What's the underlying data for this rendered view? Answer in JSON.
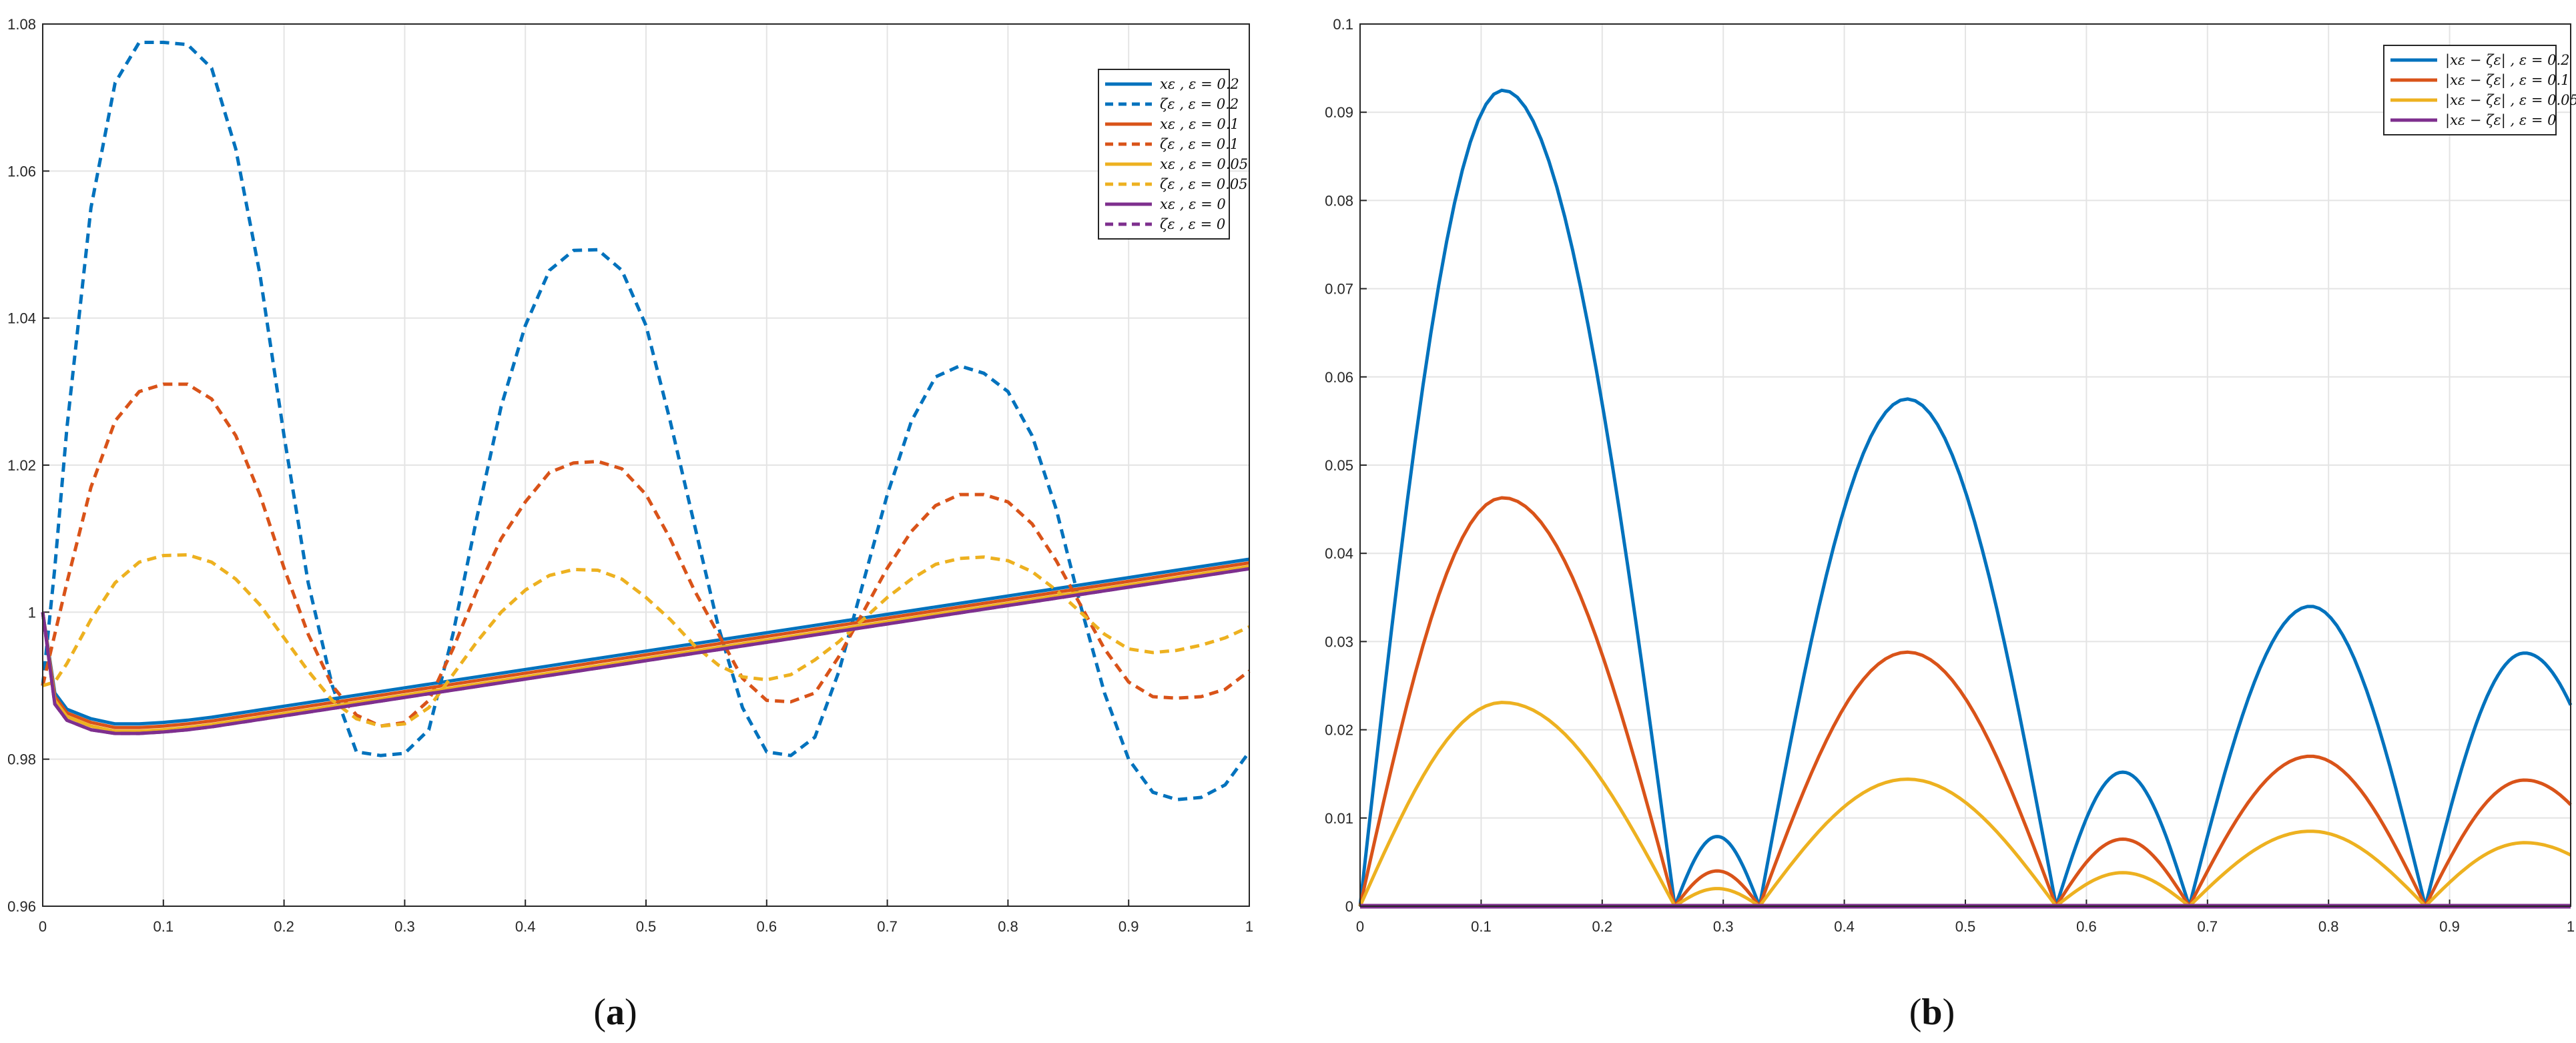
{
  "panels": [
    {
      "caption_open": "(",
      "caption_letter": "a",
      "caption_close": ")"
    },
    {
      "caption_open": "(",
      "caption_letter": "b",
      "caption_close": ")"
    }
  ],
  "chart_data": [
    {
      "type": "line",
      "title": "",
      "xlabel": "",
      "ylabel": "",
      "xlim": [
        0,
        1
      ],
      "ylim": [
        0.96,
        1.08
      ],
      "xticks": [
        0,
        0.1,
        0.2,
        0.3,
        0.4,
        0.5,
        0.6,
        0.7,
        0.8,
        0.9,
        1
      ],
      "xtick_labels": [
        "0",
        "0.1",
        "0.2",
        "0.3",
        "0.4",
        "0.5",
        "0.6",
        "0.7",
        "0.8",
        "0.9",
        "1"
      ],
      "yticks": [
        0.96,
        0.98,
        1.0,
        1.02,
        1.04,
        1.06,
        1.08
      ],
      "ytick_labels": [
        "0.96",
        "0.98",
        "1",
        "1.02",
        "1.04",
        "1.06",
        "1.08"
      ],
      "grid": true,
      "legend_position": "top-right",
      "x": [
        0,
        0.01,
        0.02,
        0.04,
        0.06,
        0.08,
        0.1,
        0.12,
        0.14,
        0.16,
        0.18,
        0.2,
        0.22,
        0.24,
        0.26,
        0.28,
        0.3,
        0.32,
        0.34,
        0.36,
        0.38,
        0.4,
        0.42,
        0.44,
        0.46,
        0.48,
        0.5,
        0.52,
        0.54,
        0.56,
        0.58,
        0.6,
        0.62,
        0.64,
        0.66,
        0.68,
        0.7,
        0.72,
        0.74,
        0.76,
        0.78,
        0.8,
        0.82,
        0.84,
        0.86,
        0.88,
        0.9,
        0.92,
        0.94,
        0.96,
        0.98,
        1.0
      ],
      "series": [
        {
          "name": "x_ε , ε = 0.2",
          "legend_label": "xε , ε = 0.2",
          "color": "#0072BD",
          "dash": "solid",
          "values": [
            1.0,
            0.989,
            0.9868,
            0.9855,
            0.9848,
            0.9848,
            0.985,
            0.9853,
            0.9857,
            0.9862,
            0.9867,
            0.9872,
            0.9877,
            0.9882,
            0.9887,
            0.9892,
            0.9897,
            0.9902,
            0.9907,
            0.9912,
            0.9917,
            0.9922,
            0.9927,
            0.9932,
            0.9937,
            0.9942,
            0.9947,
            0.9952,
            0.9957,
            0.9962,
            0.9967,
            0.9972,
            0.9977,
            0.9982,
            0.9987,
            0.9992,
            0.9997,
            1.0002,
            1.0007,
            1.0012,
            1.0017,
            1.0022,
            1.0027,
            1.0032,
            1.0037,
            1.0042,
            1.0047,
            1.0052,
            1.0057,
            1.0062,
            1.0067,
            1.0072
          ]
        },
        {
          "name": "ζ_ε , ε = 0.2",
          "legend_label": "ζε , ε = 0.2",
          "color": "#0072BD",
          "dash": "dashed",
          "values": [
            0.99,
            1.006,
            1.025,
            1.055,
            1.072,
            1.0775,
            1.0775,
            1.0772,
            1.074,
            1.063,
            1.046,
            1.024,
            1.004,
            0.99,
            0.981,
            0.9805,
            0.9808,
            0.984,
            0.997,
            1.013,
            1.028,
            1.039,
            1.0465,
            1.0492,
            1.0493,
            1.0465,
            1.039,
            1.026,
            1.012,
            0.998,
            0.987,
            0.981,
            0.9805,
            0.983,
            0.992,
            1.004,
            1.016,
            1.026,
            1.032,
            1.0335,
            1.0325,
            1.03,
            1.024,
            1.014,
            1.001,
            0.989,
            0.98,
            0.9755,
            0.9745,
            0.9748,
            0.9765,
            0.981
          ]
        },
        {
          "name": "x_ε , ε = 0.1",
          "legend_label": "xε , ε = 0.1",
          "color": "#D95319",
          "dash": "solid",
          "values": [
            1.0,
            0.9885,
            0.9863,
            0.985,
            0.9843,
            0.9843,
            0.9845,
            0.9848,
            0.9852,
            0.9857,
            0.9862,
            0.9867,
            0.9872,
            0.9877,
            0.9882,
            0.9887,
            0.9892,
            0.9897,
            0.9902,
            0.9907,
            0.9912,
            0.9917,
            0.9922,
            0.9927,
            0.9932,
            0.9937,
            0.9942,
            0.9947,
            0.9952,
            0.9957,
            0.9962,
            0.9967,
            0.9972,
            0.9977,
            0.9982,
            0.9987,
            0.9992,
            0.9997,
            1.0002,
            1.0007,
            1.0012,
            1.0017,
            1.0022,
            1.0027,
            1.0032,
            1.0037,
            1.0042,
            1.0047,
            1.0052,
            1.0057,
            1.0062,
            1.0067
          ]
        },
        {
          "name": "ζ_ε , ε = 0.1",
          "legend_label": "ζε , ε = 0.1",
          "color": "#D95319",
          "dash": "dashed",
          "values": [
            0.99,
            0.997,
            1.004,
            1.017,
            1.026,
            1.03,
            1.031,
            1.031,
            1.029,
            1.024,
            1.016,
            1.006,
            0.997,
            0.99,
            0.986,
            0.9845,
            0.985,
            0.988,
            0.995,
            1.003,
            1.01,
            1.015,
            1.019,
            1.0203,
            1.0205,
            1.0195,
            1.016,
            1.01,
            1.003,
            0.997,
            0.991,
            0.988,
            0.9878,
            0.989,
            0.994,
            1.0,
            1.006,
            1.011,
            1.0145,
            1.016,
            1.016,
            1.015,
            1.012,
            1.007,
            1.001,
            0.995,
            0.9905,
            0.9885,
            0.9883,
            0.9885,
            0.9895,
            0.992
          ]
        },
        {
          "name": "x_ε , ε = 0.05",
          "legend_label": "xε , ε = 0.05",
          "color": "#EDB120",
          "dash": "solid",
          "values": [
            1.0,
            0.988,
            0.9858,
            0.9845,
            0.9838,
            0.9838,
            0.984,
            0.9843,
            0.9847,
            0.9852,
            0.9857,
            0.9862,
            0.9867,
            0.9872,
            0.9877,
            0.9882,
            0.9887,
            0.9892,
            0.9897,
            0.9902,
            0.9907,
            0.9912,
            0.9917,
            0.9922,
            0.9927,
            0.9932,
            0.9937,
            0.9942,
            0.9947,
            0.9952,
            0.9957,
            0.9962,
            0.9967,
            0.9972,
            0.9977,
            0.9982,
            0.9987,
            0.9992,
            0.9997,
            1.0002,
            1.0007,
            1.0012,
            1.0017,
            1.0022,
            1.0027,
            1.0032,
            1.0037,
            1.0042,
            1.0047,
            1.0052,
            1.0057,
            1.0062
          ]
        },
        {
          "name": "ζ_ε , ε = 0.05",
          "legend_label": "ζε , ε = 0.05",
          "color": "#EDB120",
          "dash": "dashed",
          "values": [
            0.99,
            0.9905,
            0.993,
            0.999,
            1.004,
            1.0068,
            1.0077,
            1.0078,
            1.0068,
            1.0045,
            1.001,
            0.9965,
            0.992,
            0.988,
            0.9855,
            0.9845,
            0.9848,
            0.987,
            0.9915,
            0.996,
            1.0,
            1.003,
            1.005,
            1.0058,
            1.0057,
            1.0045,
            1.002,
            0.999,
            0.9955,
            0.9928,
            0.9912,
            0.9908,
            0.9915,
            0.9935,
            0.996,
            0.999,
            1.002,
            1.0045,
            1.0065,
            1.0073,
            1.0075,
            1.007,
            1.0055,
            1.003,
            1.0,
            0.997,
            0.995,
            0.9945,
            0.9948,
            0.9955,
            0.9965,
            0.998
          ]
        },
        {
          "name": "x_ε , ε = 0",
          "legend_label": "xε , ε = 0",
          "color": "#7E2F8E",
          "dash": "solid",
          "values": [
            1.0,
            0.9875,
            0.9853,
            0.984,
            0.9835,
            0.9835,
            0.9837,
            0.984,
            0.9844,
            0.9849,
            0.9854,
            0.9859,
            0.9864,
            0.9869,
            0.9874,
            0.9879,
            0.9884,
            0.9889,
            0.9894,
            0.9899,
            0.9904,
            0.9909,
            0.9914,
            0.9919,
            0.9924,
            0.9929,
            0.9934,
            0.9939,
            0.9944,
            0.9949,
            0.9954,
            0.9959,
            0.9964,
            0.9969,
            0.9974,
            0.9979,
            0.9984,
            0.9989,
            0.9994,
            0.9999,
            1.0004,
            1.0009,
            1.0014,
            1.0019,
            1.0024,
            1.0029,
            1.0034,
            1.0039,
            1.0044,
            1.0049,
            1.0054,
            1.0059
          ]
        },
        {
          "name": "ζ_ε , ε = 0",
          "legend_label": "ζε , ε = 0",
          "color": "#7E2F8E",
          "dash": "dashed",
          "values": [
            1.0,
            0.9875,
            0.9853,
            0.984,
            0.9835,
            0.9835,
            0.9837,
            0.984,
            0.9844,
            0.9849,
            0.9854,
            0.9859,
            0.9864,
            0.9869,
            0.9874,
            0.9879,
            0.9884,
            0.9889,
            0.9894,
            0.9899,
            0.9904,
            0.9909,
            0.9914,
            0.9919,
            0.9924,
            0.9929,
            0.9934,
            0.9939,
            0.9944,
            0.9949,
            0.9954,
            0.9959,
            0.9964,
            0.9969,
            0.9974,
            0.9979,
            0.9984,
            0.9989,
            0.9994,
            0.9999,
            1.0004,
            1.0009,
            1.0014,
            1.0019,
            1.0024,
            1.0029,
            1.0034,
            1.0039,
            1.0044,
            1.0049,
            1.0054,
            1.0059
          ]
        }
      ]
    },
    {
      "type": "line",
      "title": "",
      "xlabel": "",
      "ylabel": "",
      "xlim": [
        0,
        1
      ],
      "ylim": [
        0,
        0.1
      ],
      "xticks": [
        0,
        0.1,
        0.2,
        0.3,
        0.4,
        0.5,
        0.6,
        0.7,
        0.8,
        0.9,
        1
      ],
      "xtick_labels": [
        "0",
        "0.1",
        "0.2",
        "0.3",
        "0.4",
        "0.5",
        "0.6",
        "0.7",
        "0.8",
        "0.9",
        "1"
      ],
      "yticks": [
        0,
        0.01,
        0.02,
        0.03,
        0.04,
        0.05,
        0.06,
        0.07,
        0.08,
        0.09,
        0.1
      ],
      "ytick_labels": [
        "0",
        "0.01",
        "0.02",
        "0.03",
        "0.04",
        "0.05",
        "0.06",
        "0.07",
        "0.08",
        "0.09",
        "0.1"
      ],
      "grid": true,
      "legend_position": "top-right",
      "zeros": [
        0,
        0.26,
        0.33,
        0.575,
        0.685,
        0.88
      ],
      "peaks": [
        {
          "x": 0.118,
          "values": [
            0.0925,
            0.0463,
            0.0231
          ]
        },
        {
          "x": 0.295,
          "values": [
            0.0079,
            0.004,
            0.002
          ]
        },
        {
          "x": 0.452,
          "values": [
            0.0575,
            0.0288,
            0.0144
          ]
        },
        {
          "x": 0.63,
          "values": [
            0.0152,
            0.0076,
            0.0038
          ]
        },
        {
          "x": 0.785,
          "values": [
            0.034,
            0.017,
            0.0085
          ]
        },
        {
          "x": 0.962,
          "values": [
            0.0287,
            0.0143,
            0.0072
          ]
        }
      ],
      "end_values": [
        0.0228,
        0.0115,
        0.0058
      ],
      "series": [
        {
          "name": "|x_ε − ζ_ε| , ε = 0.2",
          "legend_label": "|xε − ζε| , ε = 0.2",
          "color": "#0072BD"
        },
        {
          "name": "|x_ε − ζ_ε| , ε = 0.1",
          "legend_label": "|xε − ζε| , ε = 0.1",
          "color": "#D95319"
        },
        {
          "name": "|x_ε − ζ_ε| , ε = 0.05",
          "legend_label": "|xε − ζε| , ε = 0.05",
          "color": "#EDB120"
        },
        {
          "name": "|x_ε − ζ_ε| , ε = 0",
          "legend_label": "|xε − ζε| , ε = 0",
          "color": "#7E2F8E"
        }
      ]
    }
  ]
}
